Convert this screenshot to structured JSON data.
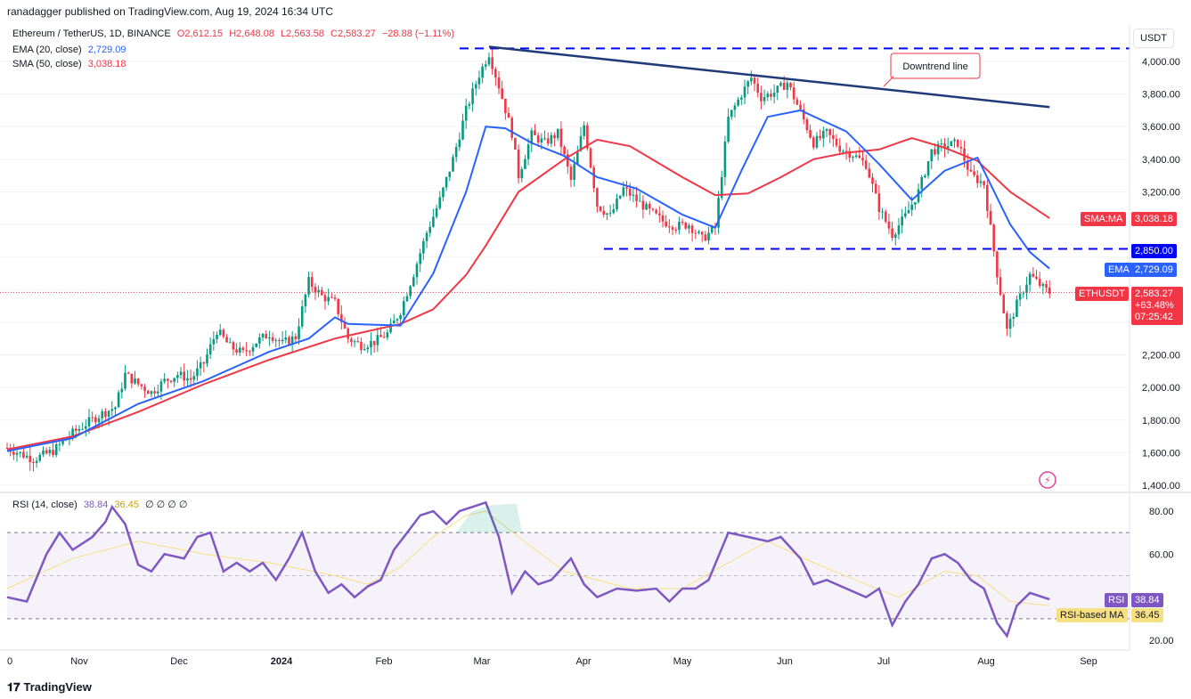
{
  "header": {
    "text": "ranadagger published on TradingView.com, Aug 19, 2024 16:34 UTC"
  },
  "legend": {
    "symbol": "Ethereum / TetherUS, 1D, BINANCE",
    "open": "O2,612.15",
    "high": "H2,648.08",
    "low": "L2,563.58",
    "close": "C2,583.27",
    "change": "−28.88 (−1.11%)",
    "ema_label": "EMA (20, close)",
    "ema_value": "2,729.09",
    "sma_label": "SMA (50, close)",
    "sma_value": "3,038.18",
    "rsi_label": "RSI (14, close)",
    "rsi_value": "38.84",
    "rsi_ma_value": "36.45",
    "rsi_extra": "∅ ∅ ∅ ∅"
  },
  "annotations": {
    "downtrend": "Downtrend line"
  },
  "badges": {
    "usdt": "USDT",
    "sma": "SMA:MA",
    "sma_price": "3,038.18",
    "level": "2,850.00",
    "ema": "EMA",
    "ema_price": "2,729.09",
    "symbol": "ETHUSDT",
    "last_price": "2,583.27",
    "last_change": "+63.48%",
    "countdown": "07:25:42",
    "rsi": "RSI",
    "rsi_price": "38.84",
    "rsi_ma": "RSI-based MA",
    "rsi_ma_price": "36.45"
  },
  "brand": "TradingView",
  "colors": {
    "up": "#089981",
    "down": "#f23645",
    "ema": "#2962ff",
    "sma": "#f23645",
    "rsi": "#7e57c2",
    "rsi_ma": "#f7e082",
    "level_line": "#0000ff",
    "trend_line": "#1e3a78"
  },
  "chart_data": {
    "type": "candlestick",
    "y_axis_ticks": [
      "4,000.00",
      "3,800.00",
      "3,600.00",
      "3,400.00",
      "3,200.00",
      "2,200.00",
      "2,000.00",
      "1,800.00",
      "1,600.00",
      "1,400.00"
    ],
    "ylim": [
      1400,
      4080
    ],
    "x_ticks": [
      "0",
      "Nov",
      "Dec",
      "2024",
      "Feb",
      "Mar",
      "Apr",
      "May",
      "Jun",
      "Jul",
      "Aug",
      "Sep"
    ],
    "rsi_ticks": [
      "80.00",
      "60.00",
      "20.00"
    ],
    "rsi_ylim": [
      20,
      85
    ],
    "rsi_bands": [
      70,
      30
    ],
    "levels": {
      "resistance_top": 4080,
      "support": 2850
    },
    "downtrend_line": {
      "from": {
        "day": 147,
        "price": 4090
      },
      "to": {
        "day": 318,
        "price": 3720
      }
    },
    "close_path": [
      [
        0,
        1630
      ],
      [
        8,
        1560
      ],
      [
        14,
        1610
      ],
      [
        20,
        1720
      ],
      [
        25,
        1790
      ],
      [
        29,
        1840
      ],
      [
        33,
        1880
      ],
      [
        36,
        2080
      ],
      [
        40,
        2020
      ],
      [
        44,
        1970
      ],
      [
        48,
        2040
      ],
      [
        52,
        2080
      ],
      [
        56,
        2050
      ],
      [
        60,
        2150
      ],
      [
        64,
        2350
      ],
      [
        68,
        2250
      ],
      [
        72,
        2210
      ],
      [
        76,
        2280
      ],
      [
        80,
        2330
      ],
      [
        84,
        2270
      ],
      [
        88,
        2310
      ],
      [
        92,
        2650
      ],
      [
        96,
        2560
      ],
      [
        100,
        2520
      ],
      [
        104,
        2300
      ],
      [
        108,
        2260
      ],
      [
        112,
        2280
      ],
      [
        116,
        2330
      ],
      [
        120,
        2470
      ],
      [
        124,
        2700
      ],
      [
        128,
        2950
      ],
      [
        132,
        3150
      ],
      [
        136,
        3400
      ],
      [
        140,
        3700
      ],
      [
        144,
        3920
      ],
      [
        147,
        4050
      ],
      [
        150,
        3850
      ],
      [
        154,
        3560
      ],
      [
        156,
        3300
      ],
      [
        160,
        3550
      ],
      [
        164,
        3500
      ],
      [
        168,
        3560
      ],
      [
        172,
        3270
      ],
      [
        176,
        3610
      ],
      [
        180,
        3120
      ],
      [
        184,
        3050
      ],
      [
        188,
        3220
      ],
      [
        192,
        3150
      ],
      [
        196,
        3080
      ],
      [
        200,
        3020
      ],
      [
        204,
        2990
      ],
      [
        208,
        3000
      ],
      [
        212,
        2910
      ],
      [
        216,
        2980
      ],
      [
        220,
        3650
      ],
      [
        224,
        3800
      ],
      [
        227,
        3900
      ],
      [
        230,
        3780
      ],
      [
        234,
        3810
      ],
      [
        238,
        3870
      ],
      [
        242,
        3690
      ],
      [
        246,
        3500
      ],
      [
        250,
        3560
      ],
      [
        254,
        3470
      ],
      [
        258,
        3430
      ],
      [
        262,
        3370
      ],
      [
        266,
        3100
      ],
      [
        270,
        2940
      ],
      [
        274,
        3050
      ],
      [
        278,
        3200
      ],
      [
        282,
        3450
      ],
      [
        286,
        3480
      ],
      [
        290,
        3500
      ],
      [
        294,
        3300
      ],
      [
        298,
        3250
      ],
      [
        302,
        2700
      ],
      [
        305,
        2350
      ],
      [
        308,
        2510
      ],
      [
        312,
        2690
      ],
      [
        316,
        2610
      ],
      [
        318,
        2583
      ]
    ],
    "ema_path": [
      [
        0,
        1610
      ],
      [
        20,
        1690
      ],
      [
        40,
        1900
      ],
      [
        60,
        2040
      ],
      [
        80,
        2220
      ],
      [
        92,
        2300
      ],
      [
        100,
        2430
      ],
      [
        104,
        2390
      ],
      [
        120,
        2380
      ],
      [
        130,
        2700
      ],
      [
        140,
        3200
      ],
      [
        146,
        3600
      ],
      [
        152,
        3590
      ],
      [
        160,
        3500
      ],
      [
        170,
        3420
      ],
      [
        180,
        3290
      ],
      [
        192,
        3220
      ],
      [
        206,
        3060
      ],
      [
        216,
        2980
      ],
      [
        224,
        3330
      ],
      [
        232,
        3660
      ],
      [
        242,
        3700
      ],
      [
        256,
        3570
      ],
      [
        266,
        3370
      ],
      [
        276,
        3150
      ],
      [
        286,
        3330
      ],
      [
        296,
        3410
      ],
      [
        306,
        3000
      ],
      [
        312,
        2830
      ],
      [
        318,
        2729
      ]
    ],
    "sma_path": [
      [
        0,
        1620
      ],
      [
        20,
        1700
      ],
      [
        40,
        1850
      ],
      [
        60,
        2020
      ],
      [
        80,
        2170
      ],
      [
        100,
        2300
      ],
      [
        120,
        2390
      ],
      [
        130,
        2480
      ],
      [
        140,
        2690
      ],
      [
        146,
        2870
      ],
      [
        156,
        3200
      ],
      [
        170,
        3400
      ],
      [
        180,
        3520
      ],
      [
        190,
        3480
      ],
      [
        206,
        3290
      ],
      [
        216,
        3180
      ],
      [
        226,
        3190
      ],
      [
        236,
        3290
      ],
      [
        246,
        3400
      ],
      [
        256,
        3440
      ],
      [
        266,
        3460
      ],
      [
        276,
        3530
      ],
      [
        286,
        3470
      ],
      [
        296,
        3390
      ],
      [
        306,
        3200
      ],
      [
        318,
        3038
      ]
    ],
    "rsi_path": [
      [
        0,
        40
      ],
      [
        6,
        38
      ],
      [
        12,
        60
      ],
      [
        16,
        70
      ],
      [
        20,
        62
      ],
      [
        26,
        68
      ],
      [
        30,
        75
      ],
      [
        32,
        82
      ],
      [
        36,
        74
      ],
      [
        40,
        55
      ],
      [
        44,
        52
      ],
      [
        48,
        60
      ],
      [
        54,
        58
      ],
      [
        58,
        68
      ],
      [
        62,
        70
      ],
      [
        66,
        52
      ],
      [
        70,
        56
      ],
      [
        74,
        52
      ],
      [
        78,
        56
      ],
      [
        82,
        48
      ],
      [
        86,
        58
      ],
      [
        90,
        70
      ],
      [
        94,
        52
      ],
      [
        98,
        42
      ],
      [
        102,
        46
      ],
      [
        106,
        40
      ],
      [
        110,
        45
      ],
      [
        114,
        48
      ],
      [
        118,
        62
      ],
      [
        122,
        70
      ],
      [
        126,
        78
      ],
      [
        130,
        80
      ],
      [
        134,
        74
      ],
      [
        138,
        80
      ],
      [
        142,
        82
      ],
      [
        146,
        84
      ],
      [
        150,
        68
      ],
      [
        154,
        42
      ],
      [
        158,
        52
      ],
      [
        162,
        46
      ],
      [
        166,
        48
      ],
      [
        172,
        58
      ],
      [
        176,
        46
      ],
      [
        180,
        40
      ],
      [
        186,
        44
      ],
      [
        192,
        43
      ],
      [
        198,
        44
      ],
      [
        202,
        38
      ],
      [
        206,
        44
      ],
      [
        210,
        44
      ],
      [
        214,
        48
      ],
      [
        220,
        70
      ],
      [
        226,
        68
      ],
      [
        232,
        66
      ],
      [
        236,
        68
      ],
      [
        242,
        58
      ],
      [
        246,
        46
      ],
      [
        250,
        48
      ],
      [
        256,
        44
      ],
      [
        262,
        40
      ],
      [
        266,
        44
      ],
      [
        270,
        27
      ],
      [
        274,
        38
      ],
      [
        278,
        46
      ],
      [
        282,
        58
      ],
      [
        286,
        60
      ],
      [
        290,
        56
      ],
      [
        294,
        48
      ],
      [
        298,
        44
      ],
      [
        302,
        28
      ],
      [
        305,
        22
      ],
      [
        308,
        36
      ],
      [
        312,
        42
      ],
      [
        316,
        40
      ],
      [
        318,
        39
      ]
    ],
    "rsi_ma_path": [
      [
        0,
        44
      ],
      [
        20,
        58
      ],
      [
        40,
        66
      ],
      [
        60,
        60
      ],
      [
        80,
        56
      ],
      [
        100,
        50
      ],
      [
        110,
        46
      ],
      [
        120,
        54
      ],
      [
        130,
        68
      ],
      [
        140,
        78
      ],
      [
        146,
        80
      ],
      [
        156,
        68
      ],
      [
        170,
        52
      ],
      [
        190,
        44
      ],
      [
        206,
        44
      ],
      [
        220,
        56
      ],
      [
        232,
        66
      ],
      [
        246,
        56
      ],
      [
        262,
        46
      ],
      [
        272,
        40
      ],
      [
        286,
        52
      ],
      [
        296,
        50
      ],
      [
        306,
        38
      ],
      [
        318,
        36
      ]
    ]
  }
}
